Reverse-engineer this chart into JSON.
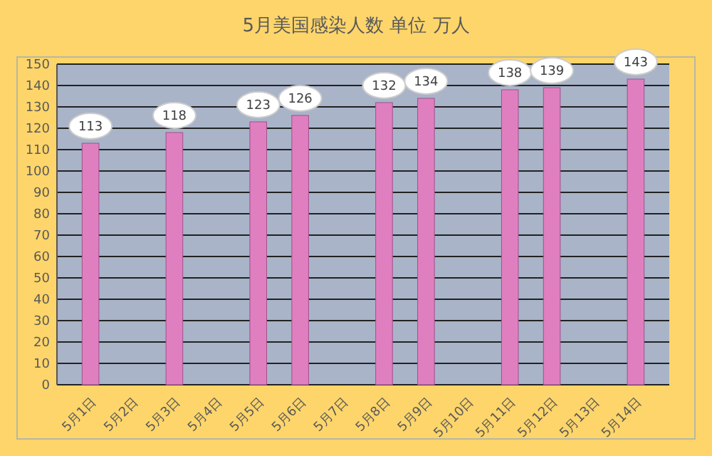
{
  "chart_data": {
    "type": "bar",
    "title": "5月美国感染人数 单位 万人",
    "categories": [
      "5月1日",
      "5月2日",
      "5月3日",
      "5月4日",
      "5月5日",
      "5月6日",
      "5月7日",
      "5月8日",
      "5月9日",
      "5月10日",
      "5月11日",
      "5月12日",
      "5月13日",
      "5月14日"
    ],
    "values": [
      113,
      null,
      118,
      null,
      123,
      126,
      null,
      132,
      134,
      null,
      138,
      139,
      null,
      143
    ],
    "color": "#e07fc0",
    "ylim": [
      0,
      150
    ],
    "yticks": [
      0,
      10,
      20,
      30,
      40,
      50,
      60,
      70,
      80,
      90,
      100,
      110,
      120,
      130,
      140,
      150
    ],
    "grid": "y",
    "data_labels": true
  }
}
